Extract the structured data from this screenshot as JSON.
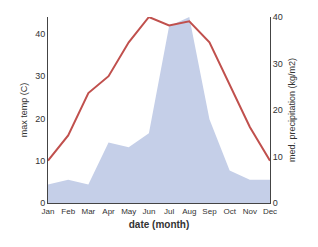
{
  "chart_data": {
    "type": "line",
    "categories": [
      "Jan",
      "Feb",
      "Mar",
      "Apr",
      "May",
      "Jun",
      "Jul",
      "Aug",
      "Sep",
      "Oct",
      "Nov",
      "Dec"
    ],
    "series": [
      {
        "type": "area",
        "axis": "y2",
        "color": "#c5cfe8",
        "values": [
          4,
          5,
          4,
          13,
          12,
          15,
          38,
          40,
          18,
          7,
          5,
          5
        ]
      },
      {
        "type": "line",
        "color": "#c0504d",
        "values": [
          10,
          16,
          26,
          30,
          38,
          44,
          42,
          43,
          38,
          28,
          18,
          10
        ]
      }
    ],
    "xlabel": "date (month)",
    "ylabel": "max temp (C)",
    "y2label": "med. precipitation (kg/m2)",
    "ylim": [
      0,
      44
    ],
    "yticks": [
      0,
      10,
      20,
      30,
      40
    ],
    "y2lim": [
      0,
      40
    ],
    "y2ticks": [
      0,
      10,
      20,
      30,
      40
    ],
    "grid": false
  }
}
